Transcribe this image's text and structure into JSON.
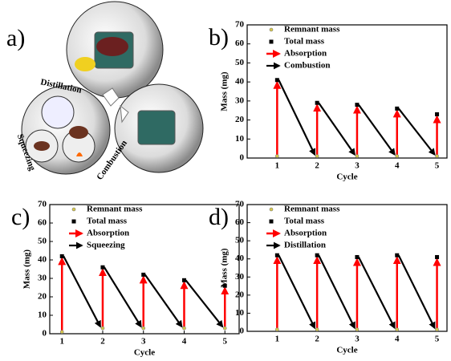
{
  "illustration": {
    "label": "a)",
    "texts": [
      "Distillation",
      "Combustion",
      "Squeezing"
    ]
  },
  "chart_data": [
    {
      "type": "cycle-arrows",
      "label": "b)",
      "xlabel": "Cycle",
      "ylabel": "Mass (mg)",
      "categories": [
        1,
        2,
        3,
        4,
        5
      ],
      "series": [
        {
          "name": "Remnant mass",
          "color": "#d8c84a",
          "values": [
            1,
            1,
            1,
            1,
            1
          ]
        },
        {
          "name": "Total mass",
          "color": "#000000",
          "values": [
            41,
            29,
            28,
            26,
            23
          ]
        }
      ],
      "arrows": [
        {
          "name": "Absorption",
          "color": "#ff0000"
        },
        {
          "name": "Combustion",
          "color": "#000000"
        }
      ],
      "xlim": [
        0.25,
        5.25
      ],
      "xticks": [
        1,
        2,
        3,
        4,
        5
      ],
      "ylim": [
        0,
        70
      ],
      "yticks": [
        0,
        10,
        20,
        30,
        40,
        50,
        60,
        70
      ]
    },
    {
      "type": "cycle-arrows",
      "label": "c)",
      "xlabel": "Cycle",
      "ylabel": "Mass (mg)",
      "categories": [
        1,
        2,
        3,
        4,
        5
      ],
      "series": [
        {
          "name": "Remnant mass",
          "color": "#d8c84a",
          "values": [
            1,
            3,
            3,
            3,
            3
          ]
        },
        {
          "name": "Total mass",
          "color": "#000000",
          "values": [
            42,
            36,
            32,
            29,
            26
          ]
        }
      ],
      "arrows": [
        {
          "name": "Absorption",
          "color": "#ff0000"
        },
        {
          "name": "Squeezing",
          "color": "#000000"
        }
      ],
      "xlim": [
        0.7,
        5.35
      ],
      "xticks": [
        1,
        2,
        3,
        4,
        5
      ],
      "ylim": [
        0,
        70
      ],
      "yticks": [
        0,
        10,
        20,
        30,
        40,
        50,
        60,
        70
      ]
    },
    {
      "type": "cycle-arrows",
      "label": "d)",
      "xlabel": "Cycle",
      "ylabel": "Mass (mg)",
      "categories": [
        1,
        2,
        3,
        4,
        5
      ],
      "series": [
        {
          "name": "Remnant mass",
          "color": "#d8c84a",
          "values": [
            1,
            1,
            1,
            1,
            1
          ]
        },
        {
          "name": "Total mass",
          "color": "#000000",
          "values": [
            42,
            42,
            41,
            42,
            41
          ]
        }
      ],
      "arrows": [
        {
          "name": "Absorption",
          "color": "#ff0000"
        },
        {
          "name": "Distillation",
          "color": "#000000"
        }
      ],
      "xlim": [
        0.25,
        5.25
      ],
      "xticks": [
        1,
        2,
        3,
        4,
        5
      ],
      "ylim": [
        0,
        70
      ],
      "yticks": [
        0,
        10,
        20,
        30,
        40,
        50,
        60,
        70
      ]
    }
  ]
}
